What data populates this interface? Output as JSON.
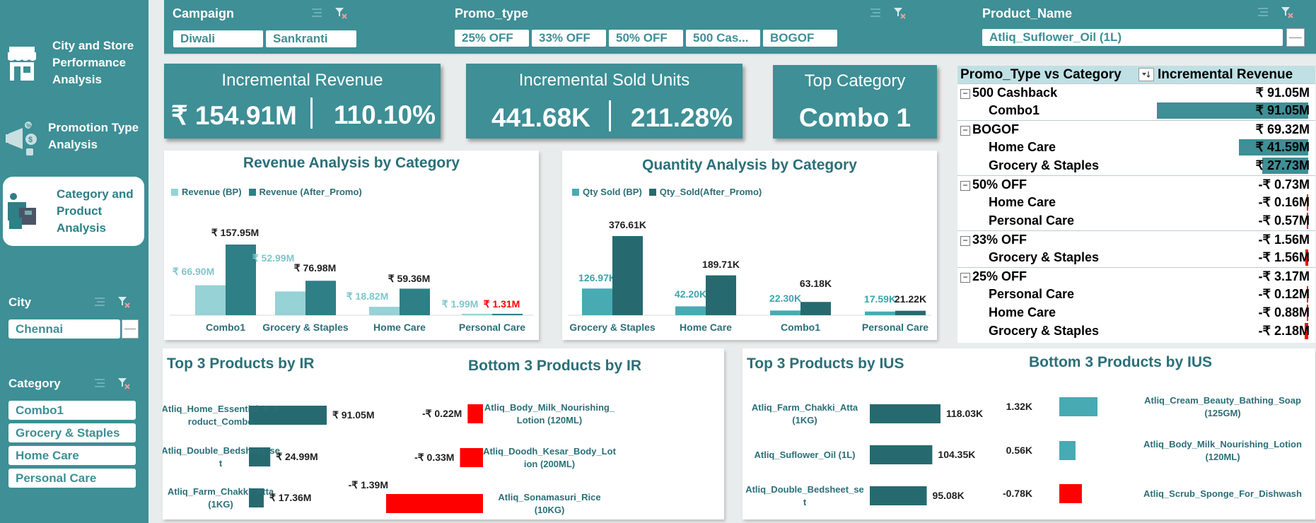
{
  "sidebar": {
    "nav": [
      {
        "label": "City and Store Performance Analysis",
        "lines": [
          "City and Store",
          "Performance",
          "Analysis"
        ]
      },
      {
        "label": "Promotion Type Analysis",
        "lines": [
          "Promotion Type",
          "Analysis"
        ]
      },
      {
        "label": "Category and Product Analysis",
        "lines": [
          "Category and",
          "Product",
          "Analysis"
        ]
      }
    ],
    "city_slicer": {
      "title": "City",
      "selected": "Chennai"
    },
    "category_slicer": {
      "title": "Category",
      "items": [
        "Combo1",
        "Grocery & Staples",
        "Home Care",
        "Personal Care"
      ]
    }
  },
  "slicers": {
    "campaign": {
      "title": "Campaign",
      "items": [
        "Diwali",
        "Sankranti"
      ]
    },
    "promo_type": {
      "title": "Promo_type",
      "items": [
        "25% OFF",
        "33% OFF",
        "50% OFF",
        "500 Cas...",
        "BOGOF"
      ]
    },
    "product_name": {
      "title": "Product_Name",
      "selected": "Atliq_Suflower_Oil (1L)"
    }
  },
  "kpis": {
    "incremental_revenue": {
      "title": "Incremental Revenue",
      "value": "₹ 154.91M",
      "percent": "110.10%"
    },
    "incremental_units": {
      "title": "Incremental Sold Units",
      "value": "441.68K",
      "percent": "211.28%"
    },
    "top_category": {
      "title": "Top Category",
      "value": "Combo 1"
    }
  },
  "pivot": {
    "header_left": "Promo_Type vs Category",
    "header_right": "Incremental Revenue",
    "groups": [
      {
        "name": "500 Cashback",
        "total": "₹ 91.05M",
        "rows": [
          {
            "name": "Combo1",
            "value": "₹ 91.05M",
            "amount": 91.05
          }
        ]
      },
      {
        "name": "BOGOF",
        "total": "₹ 69.32M",
        "rows": [
          {
            "name": "Home Care",
            "value": "₹ 41.59M",
            "amount": 41.59
          },
          {
            "name": "Grocery & Staples",
            "value": "₹ 27.73M",
            "amount": 27.73
          }
        ]
      },
      {
        "name": "50% OFF",
        "total": "-₹ 0.73M",
        "rows": [
          {
            "name": "Home Care",
            "value": "-₹ 0.16M",
            "amount": -0.16
          },
          {
            "name": "Personal Care",
            "value": "-₹ 0.57M",
            "amount": -0.57
          }
        ]
      },
      {
        "name": "33% OFF",
        "total": "-₹ 1.56M",
        "rows": [
          {
            "name": "Grocery & Staples",
            "value": "-₹ 1.56M",
            "amount": -1.56
          }
        ]
      },
      {
        "name": "25% OFF",
        "total": "-₹ 3.17M",
        "rows": [
          {
            "name": "Personal Care",
            "value": "-₹ 0.12M",
            "amount": -0.12
          },
          {
            "name": "Home Care",
            "value": "-₹ 0.88M",
            "amount": -0.88
          },
          {
            "name": "Grocery & Staples",
            "value": "-₹ 2.18M",
            "amount": -2.18
          }
        ]
      }
    ]
  },
  "chart_data": [
    {
      "type": "bar",
      "title": "Revenue Analysis by Category",
      "categories": [
        "Combo1",
        "Grocery & Staples",
        "Home Care",
        "Personal Care"
      ],
      "series": [
        {
          "name": "Revenue (BP)",
          "values": [
            66.9,
            52.99,
            18.82,
            1.99
          ],
          "labels": [
            "₹ 66.90M",
            "₹ 52.99M",
            "₹ 18.82M",
            "₹ 1.99M"
          ]
        },
        {
          "name": "Revenue (After_Promo)",
          "values": [
            157.95,
            76.98,
            59.36,
            1.31
          ],
          "labels": [
            "₹ 157.95M",
            "₹ 76.98M",
            "₹ 59.36M",
            "₹ 1.31M"
          ]
        }
      ]
    },
    {
      "type": "bar",
      "title": "Quantity Analysis by Category",
      "categories": [
        "Grocery & Staples",
        "Home Care",
        "Combo1",
        "Personal Care"
      ],
      "series": [
        {
          "name": "Qty Sold (BP)",
          "values": [
            126.97,
            42.2,
            22.3,
            17.59
          ],
          "labels": [
            "126.97K",
            "42.20K",
            "22.30K",
            "17.59K"
          ]
        },
        {
          "name": "Qty_Sold(After_Promo)",
          "values": [
            376.61,
            189.71,
            63.18,
            21.22
          ],
          "labels": [
            "376.61K",
            "189.71K",
            "63.18K",
            "21.22K"
          ]
        }
      ]
    },
    {
      "type": "bar",
      "title": "Top 3 Products by IR",
      "categories": [
        "Atliq_Home_Essential_8_Product_Combo",
        "Atliq_Double_Bedsheet_set",
        "Atliq_Farm_Chakki_Atta (1KG)"
      ],
      "display_categories": [
        [
          "Atliq_Home_Essential_8_P",
          "roduct_Combo"
        ],
        [
          "Atliq_Double_Bedsheet_se",
          "t"
        ],
        [
          "Atliq_Farm_Chakki_Atta",
          "(1KG)"
        ]
      ],
      "values": [
        91.05,
        24.99,
        17.36
      ],
      "labels": [
        "₹ 91.05M",
        "₹ 24.99M",
        "₹ 17.36M"
      ]
    },
    {
      "type": "bar",
      "title": "Bottom 3 Products by IR",
      "categories": [
        "Atliq_Body_Milk_Nourishing_Lotion (120ML)",
        "Atliq_Doodh_Kesar_Body_Lotion (200ML)",
        "Atliq_Sonamasuri_Rice (10KG)"
      ],
      "display_categories": [
        [
          "Atliq_Body_Milk_Nourishing_",
          "Lotion (120ML)"
        ],
        [
          "Atliq_Doodh_Kesar_Body_Lot",
          "ion (200ML)"
        ],
        [
          "Atliq_Sonamasuri_Rice",
          "(10KG)"
        ]
      ],
      "values": [
        -0.22,
        -0.33,
        -1.39
      ],
      "labels": [
        "-₹ 0.22M",
        "-₹ 0.33M",
        "-₹ 1.39M"
      ]
    },
    {
      "type": "bar",
      "title": "Top 3 Products by IUS",
      "categories": [
        "Atliq_Farm_Chakki_Atta (1KG)",
        "Atliq_Suflower_Oil (1L)",
        "Atliq_Double_Bedsheet_set"
      ],
      "display_categories": [
        [
          "Atliq_Farm_Chakki_Atta",
          "(1KG)"
        ],
        [
          "Atliq_Suflower_Oil (1L)"
        ],
        [
          "Atliq_Double_Bedsheet_se",
          "t"
        ]
      ],
      "values": [
        118.03,
        104.35,
        95.08
      ],
      "labels": [
        "118.03K",
        "104.35K",
        "95.08K"
      ]
    },
    {
      "type": "bar",
      "title": "Bottom 3 Products by IUS",
      "categories": [
        "Atliq_Cream_Beauty_Bathing_Soap (125GM)",
        "Atliq_Body_Milk_Nourishing_Lotion (120ML)",
        "Atliq_Scrub_Sponge_For_Dishwash"
      ],
      "display_categories": [
        [
          "Atliq_Cream_Beauty_Bathing_Soap",
          "(125GM)"
        ],
        [
          "Atliq_Body_Milk_Nourishing_Lotion",
          "(120ML)"
        ],
        [
          "Atliq_Scrub_Sponge_For_Dishwash"
        ]
      ],
      "values": [
        1.32,
        0.56,
        -0.78
      ],
      "labels": [
        "1.32K",
        "0.56K",
        "-0.78K"
      ]
    }
  ],
  "colors": {
    "teal": "#3e8f96",
    "light_teal": "#96d2d6",
    "dark_teal": "#2e7f86",
    "bar_dark": "#266a70",
    "bar_mid": "#48aab3",
    "negative": "#ff0000",
    "title": "#2b6f78"
  }
}
